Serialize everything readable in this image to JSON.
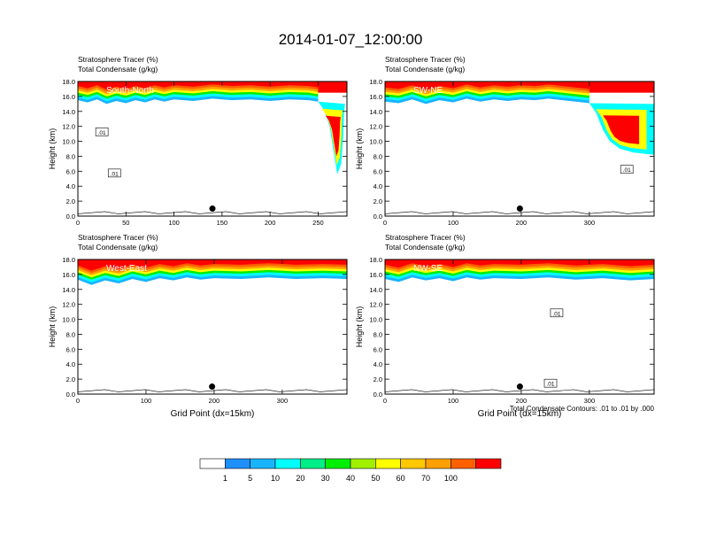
{
  "figure": {
    "title": "2014-01-07_12:00:00",
    "contour_note": "Total Condensate Contours: .01 to .01 by .000",
    "colorbar": {
      "levels": [
        "1",
        "5",
        "10",
        "20",
        "30",
        "40",
        "50",
        "60",
        "70",
        "100"
      ],
      "colors": [
        "#ffffff",
        "#1e90ff",
        "#18b4ff",
        "#00ffff",
        "#00ee88",
        "#00ee00",
        "#a0f000",
        "#ffff00",
        "#ffc800",
        "#ffa000",
        "#ff6000",
        "#ff0000"
      ]
    }
  },
  "chart_data": [
    {
      "type": "heatmap",
      "panel_label": "South-North",
      "title_line1": "Stratosphere Tracer   (%)",
      "title_line2": "Total Condensate   (g/kg)",
      "ylabel": "Height (km)",
      "xlabel": "",
      "xlim": [
        0,
        280
      ],
      "ylim": [
        0,
        18
      ],
      "xticks": [
        "0",
        "50",
        "100",
        "150",
        "200",
        "250"
      ],
      "xtick_values": [
        0,
        50,
        100,
        150,
        200,
        250
      ],
      "yticks": [
        "0.0",
        "2.0",
        "4.0",
        "6.0",
        "8.0",
        "10.0",
        "12.0",
        "14.0",
        "16.0",
        "18.0"
      ],
      "contour_labels": [
        {
          "text": ".01",
          "x": 25,
          "y": 11.2
        },
        {
          "text": ".01",
          "x": 38,
          "y": 5.7
        }
      ],
      "marker": {
        "x": 140,
        "y": 1.0
      },
      "tropopause": [
        [
          0,
          15.5
        ],
        [
          10,
          15.2
        ],
        [
          20,
          15.6
        ],
        [
          30,
          15.0
        ],
        [
          40,
          15.4
        ],
        [
          50,
          15.1
        ],
        [
          60,
          15.5
        ],
        [
          70,
          15.2
        ],
        [
          80,
          15.6
        ],
        [
          90,
          15.3
        ],
        [
          100,
          15.6
        ],
        [
          120,
          15.4
        ],
        [
          140,
          15.7
        ],
        [
          160,
          15.5
        ],
        [
          180,
          15.6
        ],
        [
          200,
          15.4
        ],
        [
          220,
          15.6
        ],
        [
          240,
          15.5
        ],
        [
          250,
          15.3
        ]
      ],
      "intrusion": [
        [
          250,
          15.3
        ],
        [
          256,
          14.2
        ],
        [
          262,
          12.0
        ],
        [
          265,
          9.5
        ],
        [
          268,
          7.2
        ],
        [
          270,
          5.6
        ],
        [
          274,
          7.0
        ],
        [
          276,
          10.5
        ],
        [
          277,
          14.0
        ],
        [
          278,
          15.0
        ]
      ]
    },
    {
      "type": "heatmap",
      "panel_label": "SW-NE",
      "title_line1": "Stratosphere Tracer   (%)",
      "title_line2": "Total Condensate   (g/kg)",
      "ylabel": "Height (km)",
      "xlabel": "",
      "xlim": [
        0,
        395
      ],
      "ylim": [
        0,
        18
      ],
      "xticks": [
        "0",
        "100",
        "200",
        "300"
      ],
      "xtick_values": [
        0,
        100,
        200,
        300
      ],
      "yticks": [
        "0.0",
        "2.0",
        "4.0",
        "6.0",
        "8.0",
        "10.0",
        "12.0",
        "14.0",
        "16.0",
        "18.0"
      ],
      "contour_labels": [
        {
          "text": ".01",
          "x": 355,
          "y": 6.2
        }
      ],
      "marker": {
        "x": 198,
        "y": 1.0
      },
      "tropopause": [
        [
          0,
          15.3
        ],
        [
          20,
          15.1
        ],
        [
          40,
          15.6
        ],
        [
          60,
          15.0
        ],
        [
          80,
          15.5
        ],
        [
          100,
          15.2
        ],
        [
          120,
          15.7
        ],
        [
          140,
          15.3
        ],
        [
          160,
          15.6
        ],
        [
          180,
          15.4
        ],
        [
          200,
          15.6
        ],
        [
          220,
          15.5
        ],
        [
          240,
          15.7
        ],
        [
          260,
          15.5
        ],
        [
          280,
          15.3
        ],
        [
          300,
          15.1
        ]
      ],
      "intrusion": [
        [
          300,
          15.1
        ],
        [
          310,
          13.8
        ],
        [
          320,
          11.5
        ],
        [
          330,
          10.0
        ],
        [
          345,
          9.0
        ],
        [
          365,
          8.5
        ],
        [
          395,
          8.2
        ],
        [
          395,
          15.0
        ]
      ]
    },
    {
      "type": "heatmap",
      "panel_label": "West-East",
      "title_line1": "Stratosphere Tracer   (%)",
      "title_line2": "Total Condensate   (g/kg)",
      "ylabel": "Height (km)",
      "xlabel": "Grid Point (dx=15km)",
      "xlim": [
        0,
        395
      ],
      "ylim": [
        0,
        18
      ],
      "xticks": [
        "0",
        "100",
        "200",
        "300"
      ],
      "xtick_values": [
        0,
        100,
        200,
        300
      ],
      "yticks": [
        "0.0",
        "2.0",
        "4.0",
        "6.0",
        "8.0",
        "10.0",
        "12.0",
        "14.0",
        "16.0",
        "18.0"
      ],
      "contour_labels": [],
      "marker": {
        "x": 197,
        "y": 1.0
      },
      "tropopause": [
        [
          0,
          15.3
        ],
        [
          20,
          14.6
        ],
        [
          40,
          15.2
        ],
        [
          60,
          14.8
        ],
        [
          80,
          15.4
        ],
        [
          100,
          15.0
        ],
        [
          120,
          15.5
        ],
        [
          140,
          15.2
        ],
        [
          160,
          15.6
        ],
        [
          180,
          15.3
        ],
        [
          200,
          15.5
        ],
        [
          240,
          15.4
        ],
        [
          280,
          15.6
        ],
        [
          320,
          15.4
        ],
        [
          360,
          15.5
        ],
        [
          395,
          15.4
        ]
      ],
      "intrusion": []
    },
    {
      "type": "heatmap",
      "panel_label": "NW-SE",
      "title_line1": "Stratosphere Tracer   (%)",
      "title_line2": "Total Condensate   (g/kg)",
      "ylabel": "Height (km)",
      "xlabel": "Grid Point (dx=15km)",
      "xlim": [
        0,
        395
      ],
      "ylim": [
        0,
        18
      ],
      "xticks": [
        "0",
        "100",
        "200",
        "300"
      ],
      "xtick_values": [
        0,
        100,
        200,
        300
      ],
      "yticks": [
        "0.0",
        "2.0",
        "4.0",
        "6.0",
        "8.0",
        "10.0",
        "12.0",
        "14.0",
        "16.0",
        "18.0"
      ],
      "contour_labels": [
        {
          "text": ".01",
          "x": 252,
          "y": 10.8
        },
        {
          "text": ".01",
          "x": 243,
          "y": 1.4
        }
      ],
      "marker": {
        "x": 198,
        "y": 1.0
      },
      "tropopause": [
        [
          0,
          15.4
        ],
        [
          20,
          15.0
        ],
        [
          40,
          15.6
        ],
        [
          60,
          15.2
        ],
        [
          80,
          15.5
        ],
        [
          100,
          15.1
        ],
        [
          120,
          15.6
        ],
        [
          140,
          15.3
        ],
        [
          160,
          15.5
        ],
        [
          200,
          15.4
        ],
        [
          240,
          15.6
        ],
        [
          280,
          15.3
        ],
        [
          320,
          15.5
        ],
        [
          360,
          15.2
        ],
        [
          395,
          15.4
        ]
      ],
      "intrusion": []
    }
  ]
}
